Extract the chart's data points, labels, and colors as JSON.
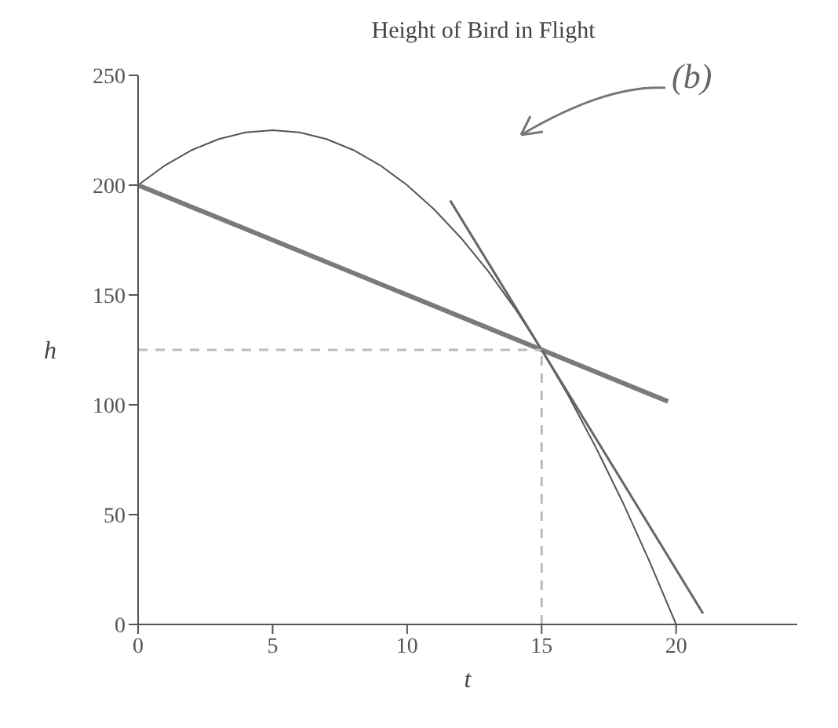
{
  "chart_data": {
    "type": "line",
    "title": "Height of Bird in Flight",
    "xlabel": "t",
    "ylabel": "h",
    "xlim": [
      0,
      24.5
    ],
    "xticks": [
      0,
      5,
      10,
      15,
      20
    ],
    "ylim": [
      0,
      250
    ],
    "yticks": [
      0,
      50,
      100,
      150,
      200,
      250
    ],
    "marker": "none",
    "series": [
      {
        "color": "#555555",
        "x": [
          0,
          1,
          2,
          3,
          4,
          5,
          6,
          7,
          8,
          9,
          10,
          11,
          12,
          13,
          14,
          15,
          16,
          17,
          18,
          19,
          20
        ],
        "values": [
          200,
          209,
          216,
          221,
          224,
          225,
          224,
          221,
          216,
          209,
          200,
          189,
          176,
          161,
          144,
          125,
          104,
          81,
          56,
          29,
          0
        ]
      },
      {
        "color": "#7a7a7a",
        "x": [
          0,
          19.7
        ],
        "values": [
          200,
          101.5
        ]
      },
      {
        "color": "#666666",
        "x": [
          11.6,
          21
        ],
        "values": [
          193,
          5
        ]
      },
      {
        "color": "#bbbbbb",
        "line_style": "dashed",
        "x": [
          0,
          15
        ],
        "values": [
          125,
          125
        ]
      },
      {
        "color": "#bbbbbb",
        "line_style": "dashed",
        "x": [
          15,
          15
        ],
        "values": [
          0,
          125
        ]
      }
    ],
    "annotations": [
      "(b)"
    ]
  }
}
